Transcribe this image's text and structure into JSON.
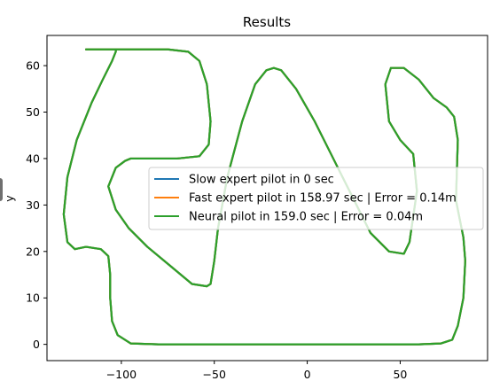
{
  "chart_data": {
    "type": "line",
    "title": "Results",
    "xlabel": "",
    "ylabel": "y",
    "xlim": [
      -140,
      97
    ],
    "ylim": [
      -3.5,
      66.5
    ],
    "xticks": [
      -100,
      -50,
      0,
      50
    ],
    "yticks": [
      0,
      10,
      20,
      30,
      40,
      50,
      60
    ],
    "grid": false,
    "legend_position": "center-right",
    "series": [
      {
        "name": "Slow expert pilot in 0 sec",
        "color": "#1f77b4",
        "x": [
          -125,
          -129,
          -131,
          -129,
          -124,
          -116,
          -110,
          -105,
          -103,
          -103,
          -105,
          -116,
          -119,
          -116,
          -105,
          -90,
          -75,
          -64,
          -58,
          -54,
          -52,
          -53,
          -58,
          -70,
          -82,
          -95,
          -98,
          -103,
          -107,
          -103,
          -96,
          -86,
          -74,
          -62,
          -54,
          -52,
          -50,
          -48,
          -43,
          -35,
          -28,
          -22,
          -18,
          -14,
          -6,
          4,
          14,
          24,
          34,
          44,
          52,
          55,
          59,
          57,
          50,
          44,
          42,
          45,
          52,
          60,
          68,
          75,
          79,
          81,
          80,
          82,
          84,
          85,
          84,
          81,
          78,
          72,
          60,
          40,
          20,
          0,
          -20,
          -40,
          -60,
          -80,
          -95,
          -102,
          -105,
          -106,
          -106,
          -107,
          -111,
          -119,
          -125
        ],
        "y": [
          20.5,
          22,
          28,
          36,
          44,
          52,
          57,
          61,
          63,
          63.5,
          63.5,
          63.5,
          63.5,
          63.5,
          63.5,
          63.5,
          63.5,
          63,
          61,
          56,
          48,
          43,
          40.5,
          40,
          40,
          40,
          39.5,
          38,
          34,
          29,
          25,
          21,
          17,
          13,
          12.5,
          13,
          18,
          25,
          36,
          48,
          56,
          59,
          59.5,
          59,
          55,
          48,
          40,
          32,
          24,
          20,
          19.5,
          22,
          33,
          41,
          44,
          48,
          56,
          59.5,
          59.5,
          57,
          53,
          51,
          49,
          44,
          31,
          27,
          23,
          18,
          10,
          4,
          1,
          0.2,
          0,
          0,
          0,
          0,
          0,
          0,
          0,
          0,
          0.2,
          2,
          5,
          10,
          15,
          19,
          20.5,
          21,
          20.5
        ]
      },
      {
        "name": "Fast expert pilot in 158.97 sec | Error = 0.14m",
        "color": "#ff7f0e",
        "x": [
          -125,
          -129,
          -131,
          -129,
          -124,
          -116,
          -110,
          -105,
          -103,
          -103,
          -105,
          -116,
          -119,
          -116,
          -105,
          -90,
          -75,
          -64,
          -58,
          -54,
          -52,
          -53,
          -58,
          -70,
          -82,
          -95,
          -98,
          -103,
          -107,
          -103,
          -96,
          -86,
          -74,
          -62,
          -54,
          -52,
          -50,
          -48,
          -43,
          -35,
          -28,
          -22,
          -18,
          -14,
          -6,
          4,
          14,
          24,
          34,
          44,
          52,
          55,
          59,
          57,
          50,
          44,
          42,
          45,
          52,
          60,
          68,
          75,
          79,
          81,
          80,
          82,
          84,
          85,
          84,
          81,
          78,
          72,
          60,
          40,
          20,
          0,
          -20,
          -40,
          -60,
          -80,
          -95,
          -102,
          -105,
          -106,
          -106,
          -107,
          -111,
          -119,
          -125
        ],
        "y": [
          20.5,
          22,
          28,
          36,
          44,
          52,
          57,
          61,
          63,
          63.5,
          63.5,
          63.5,
          63.5,
          63.5,
          63.5,
          63.5,
          63.5,
          63,
          61,
          56,
          48,
          43,
          40.5,
          40,
          40,
          40,
          39.5,
          38,
          34,
          29,
          25,
          21,
          17,
          13,
          12.5,
          13,
          18,
          25,
          36,
          48,
          56,
          59,
          59.5,
          59,
          55,
          48,
          40,
          32,
          24,
          20,
          19.5,
          22,
          33,
          41,
          44,
          48,
          56,
          59.5,
          59.5,
          57,
          53,
          51,
          49,
          44,
          31,
          27,
          23,
          18,
          10,
          4,
          1,
          0.2,
          0,
          0,
          0,
          0,
          0,
          0,
          0,
          0,
          0.2,
          2,
          5,
          10,
          15,
          19,
          20.5,
          21,
          20.5
        ]
      },
      {
        "name": "Neural pilot in 159.0 sec | Error = 0.04m",
        "color": "#2ca02c",
        "x": [
          -125,
          -129,
          -131,
          -129,
          -124,
          -116,
          -110,
          -105,
          -103,
          -103,
          -105,
          -116,
          -119,
          -116,
          -105,
          -90,
          -75,
          -64,
          -58,
          -54,
          -52,
          -53,
          -58,
          -70,
          -82,
          -95,
          -98,
          -103,
          -107,
          -103,
          -96,
          -86,
          -74,
          -62,
          -54,
          -52,
          -50,
          -48,
          -43,
          -35,
          -28,
          -22,
          -18,
          -14,
          -6,
          4,
          14,
          24,
          34,
          44,
          52,
          55,
          59,
          57,
          50,
          44,
          42,
          45,
          52,
          60,
          68,
          75,
          79,
          81,
          80,
          82,
          84,
          85,
          84,
          81,
          78,
          72,
          60,
          40,
          20,
          0,
          -20,
          -40,
          -60,
          -80,
          -95,
          -102,
          -105,
          -106,
          -106,
          -107,
          -111,
          -119,
          -125
        ],
        "y": [
          20.5,
          22,
          28,
          36,
          44,
          52,
          57,
          61,
          63,
          63.5,
          63.5,
          63.5,
          63.5,
          63.5,
          63.5,
          63.5,
          63.5,
          63,
          61,
          56,
          48,
          43,
          40.5,
          40,
          40,
          40,
          39.5,
          38,
          34,
          29,
          25,
          21,
          17,
          13,
          12.5,
          13,
          18,
          25,
          36,
          48,
          56,
          59,
          59.5,
          59,
          55,
          48,
          40,
          32,
          24,
          20,
          19.5,
          22,
          33,
          41,
          44,
          48,
          56,
          59.5,
          59.5,
          57,
          53,
          51,
          49,
          44,
          31,
          27,
          23,
          18,
          10,
          4,
          1,
          0.2,
          0,
          0,
          0,
          0,
          0,
          0,
          0,
          0,
          0.2,
          2,
          5,
          10,
          15,
          19,
          20.5,
          21,
          20.5
        ]
      }
    ]
  }
}
